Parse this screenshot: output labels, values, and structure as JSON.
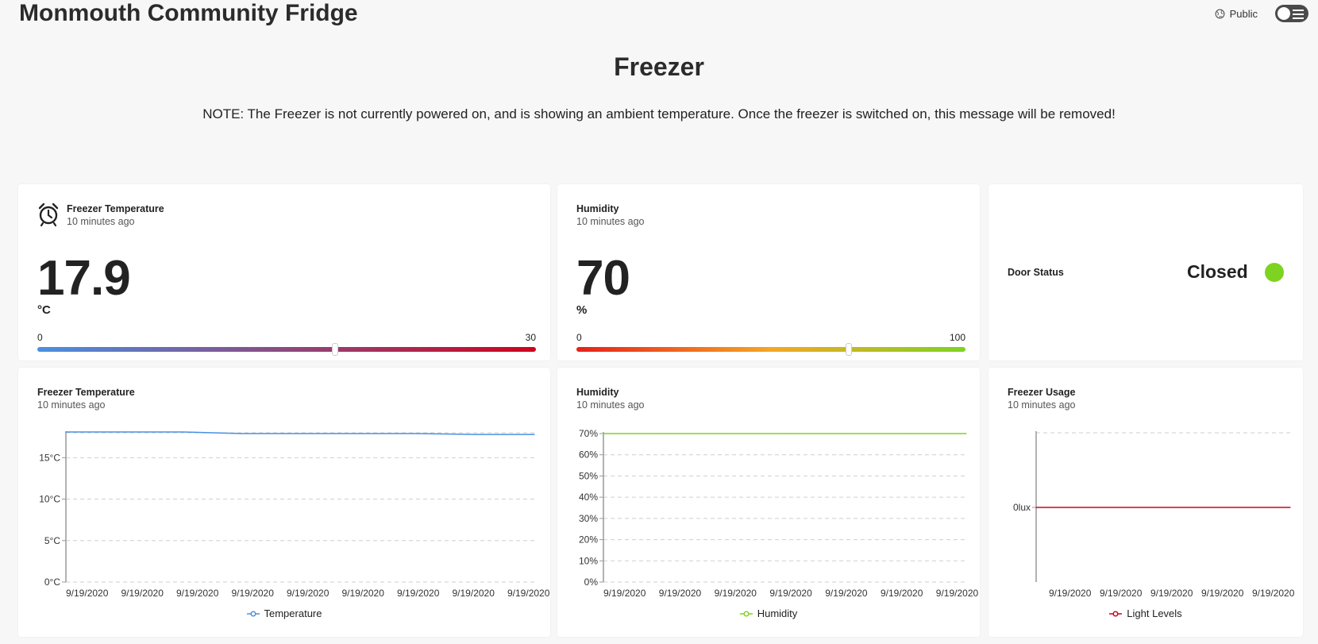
{
  "header": {
    "app_title": "Monmouth Community Fridge",
    "public_label": "Public"
  },
  "page": {
    "heading": "Freezer",
    "note": "NOTE: The Freezer is not currently powered on, and is showing an ambient temperature. Once the freezer is switched on, this message will be removed!"
  },
  "temp_card": {
    "title": "Freezer Temperature",
    "updated": "10 minutes ago",
    "value": "17.9",
    "unit": "°C",
    "min": "0",
    "max": "30",
    "level_fraction": 0.597,
    "gradient": [
      "#4a90e2",
      "#d0021b"
    ]
  },
  "humidity_card": {
    "title": "Humidity",
    "updated": "10 minutes ago",
    "value": "70",
    "unit": "%",
    "min": "0",
    "max": "100",
    "level_fraction": 0.7,
    "gradient": [
      "#e8201a",
      "#f5a623",
      "#7ed321"
    ]
  },
  "door_card": {
    "label": "Door Status",
    "status": "Closed",
    "status_color": "#7ed321"
  },
  "temp_chart_card": {
    "title": "Freezer Temperature",
    "updated": "10 minutes ago",
    "legend": "Temperature",
    "color": "#4a90e2"
  },
  "humidity_chart_card": {
    "title": "Humidity",
    "updated": "10 minutes ago",
    "legend": "Humidity",
    "color": "#7ed321"
  },
  "usage_chart_card": {
    "title": "Freezer Usage",
    "updated": "10 minutes ago",
    "legend": "Light Levels",
    "color": "#d0021b"
  },
  "chart_data": [
    {
      "type": "line",
      "series": [
        {
          "name": "Temperature",
          "x": [
            "9/19/2020",
            "9/19/2020",
            "9/19/2020",
            "9/19/2020",
            "9/19/2020",
            "9/19/2020",
            "9/19/2020",
            "9/19/2020",
            "9/19/2020"
          ],
          "values": [
            18.1,
            18.1,
            18.1,
            17.9,
            17.9,
            17.9,
            17.9,
            17.8,
            17.8
          ]
        }
      ],
      "x_ticks": [
        "9/19/2020",
        "9/19/2020",
        "9/19/2020",
        "9/19/2020",
        "9/19/2020",
        "9/19/2020",
        "9/19/2020",
        "9/19/2020",
        "9/19/2020"
      ],
      "y_ticks": [
        "0°C",
        "5°C",
        "10°C",
        "15°C"
      ],
      "y_tick_values": [
        0,
        5,
        10,
        15
      ],
      "ylim": [
        0,
        18
      ],
      "grid": true,
      "legend": "bottom-center"
    },
    {
      "type": "line",
      "series": [
        {
          "name": "Humidity",
          "x": [
            "9/19/2020",
            "9/19/2020",
            "9/19/2020",
            "9/19/2020",
            "9/19/2020",
            "9/19/2020",
            "9/19/2020"
          ],
          "values": [
            70,
            70,
            70,
            70,
            70,
            70,
            70
          ]
        }
      ],
      "x_ticks": [
        "9/19/2020",
        "9/19/2020",
        "9/19/2020",
        "9/19/2020",
        "9/19/2020",
        "9/19/2020",
        "9/19/2020"
      ],
      "y_ticks": [
        "0%",
        "10%",
        "20%",
        "30%",
        "40%",
        "50%",
        "60%",
        "70%"
      ],
      "y_tick_values": [
        0,
        10,
        20,
        30,
        40,
        50,
        60,
        70
      ],
      "ylim": [
        0,
        70
      ],
      "grid": true,
      "legend": "bottom-center"
    },
    {
      "type": "line",
      "series": [
        {
          "name": "Light Levels",
          "x": [
            "9/19/2020",
            "9/19/2020",
            "9/19/2020",
            "9/19/2020",
            "9/19/2020"
          ],
          "values": [
            0,
            0,
            0,
            0,
            0
          ]
        }
      ],
      "x_ticks": [
        "9/19/2020",
        "9/19/2020",
        "9/19/2020",
        "9/19/2020",
        "9/19/2020"
      ],
      "y_ticks": [
        "0lux"
      ],
      "y_tick_values": [
        0
      ],
      "ylim": [
        -1,
        1
      ],
      "grid": true,
      "legend": "bottom-center"
    }
  ]
}
